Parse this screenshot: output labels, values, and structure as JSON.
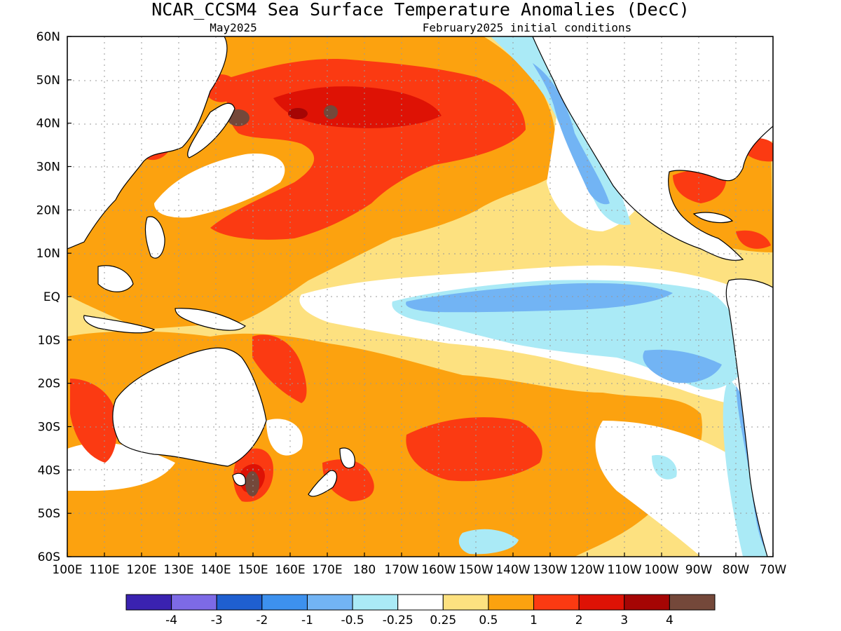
{
  "title": "NCAR_CCSM4 Sea Surface Temperature Anomalies (DecC)",
  "subtitle_left": "May2025",
  "subtitle_right": "February2025 initial conditions",
  "lat_labels": [
    "60N",
    "50N",
    "40N",
    "30N",
    "20N",
    "10N",
    "EQ",
    "10S",
    "20S",
    "30S",
    "40S",
    "50S",
    "60S"
  ],
  "lon_labels": [
    "100E",
    "110E",
    "120E",
    "130E",
    "140E",
    "150E",
    "160E",
    "170E",
    "180",
    "170W",
    "160W",
    "150W",
    "140W",
    "130W",
    "120W",
    "110W",
    "100W",
    "90W",
    "80W",
    "70W"
  ],
  "colorbar": {
    "colors": [
      "#3a22b0",
      "#7d6ae6",
      "#1f5fd0",
      "#3d91ee",
      "#72b4f4",
      "#aaeaf6",
      "#ffffff",
      "#fde180",
      "#fca20f",
      "#fb3a12",
      "#de1205",
      "#a50504",
      "#74483a"
    ],
    "labels": [
      "-4",
      "-3",
      "-2",
      "-1",
      "-0.5",
      "-0.25",
      "0.25",
      "0.5",
      "1",
      "2",
      "3",
      "4"
    ]
  },
  "legend_colors": {
    "land": "#ffffff",
    "neutral": "#ffffff",
    "weak_warm": "#fde180",
    "warm": "#fca20f",
    "strong_warm": "#fb3a12",
    "very_warm": "#de1205",
    "extreme_warm": "#74483a",
    "weak_cool": "#aaeaf6",
    "cool": "#72b4f4"
  }
}
